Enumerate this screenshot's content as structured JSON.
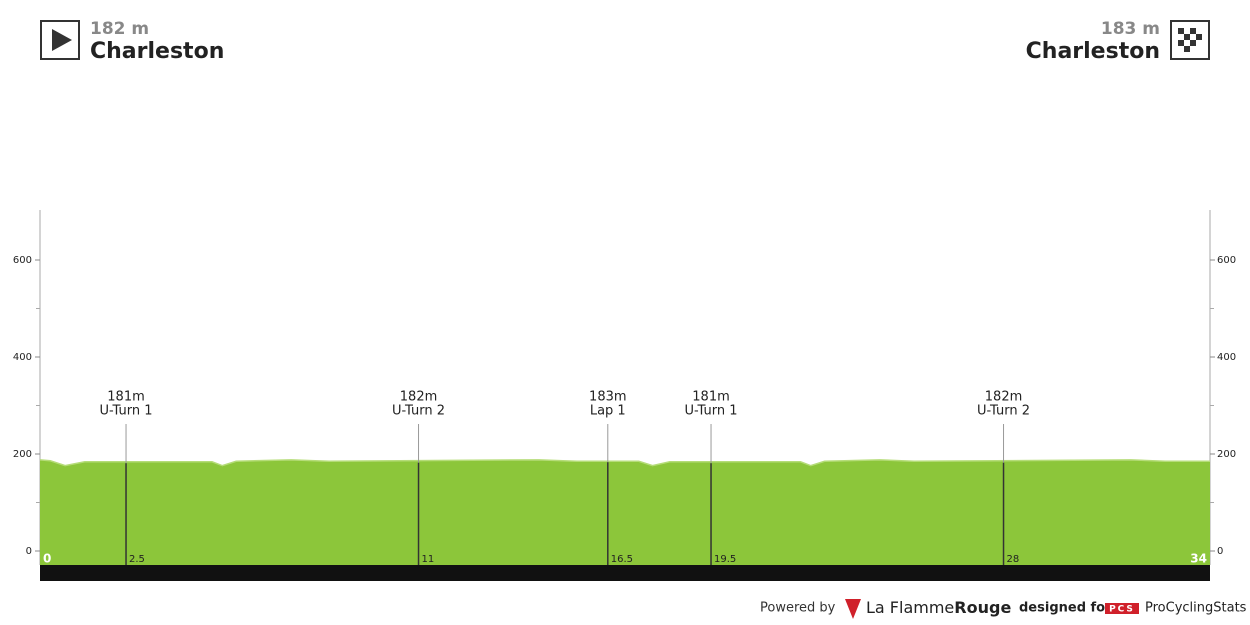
{
  "chart_data": {
    "type": "elevation-profile",
    "start": {
      "elevation": "182 m",
      "name": "Charleston"
    },
    "finish": {
      "elevation": "183 m",
      "name": "Charleston"
    },
    "x": [
      0,
      0.3,
      0.73,
      1.3,
      5.0,
      5.3,
      5.7,
      7.3,
      8.4,
      14.5,
      15.6,
      17.4,
      17.8,
      18.3,
      22.1,
      22.4,
      22.8,
      24.4,
      25.4,
      31.7,
      32.7,
      34
    ],
    "values": [
      188,
      186,
      176,
      184,
      184,
      176,
      185,
      188,
      185,
      188,
      185,
      185,
      176,
      184,
      184,
      176,
      185,
      188,
      185,
      188,
      185,
      185
    ],
    "color": "#8cc63a",
    "xlim": [
      0,
      34
    ],
    "xticks": [
      0,
      34
    ],
    "ylim": [
      0,
      700
    ],
    "yticks": [
      0,
      200,
      400,
      600
    ],
    "y_minor_ticks": [
      100,
      300,
      500
    ],
    "markers": [
      {
        "km": 2.5,
        "elevation": 181,
        "elevation_label": "181m",
        "name": "U-Turn 1"
      },
      {
        "km": 11,
        "elevation": 182,
        "elevation_label": "182m",
        "name": "U-Turn 2"
      },
      {
        "km": 16.5,
        "elevation": 183,
        "elevation_label": "183m",
        "name": "Lap 1"
      },
      {
        "km": 19.5,
        "elevation": 181,
        "elevation_label": "181m",
        "name": "U-Turn 1"
      },
      {
        "km": 28,
        "elevation": 182,
        "elevation_label": "182m",
        "name": "U-Turn 2"
      }
    ],
    "footer": {
      "powered_by": "Powered by",
      "brand_a": "La Flamme",
      "brand_b": "Rouge",
      "designed_for": "designed for",
      "pcs_badge": "PCS",
      "pcs_name": "ProCyclingStats"
    }
  }
}
